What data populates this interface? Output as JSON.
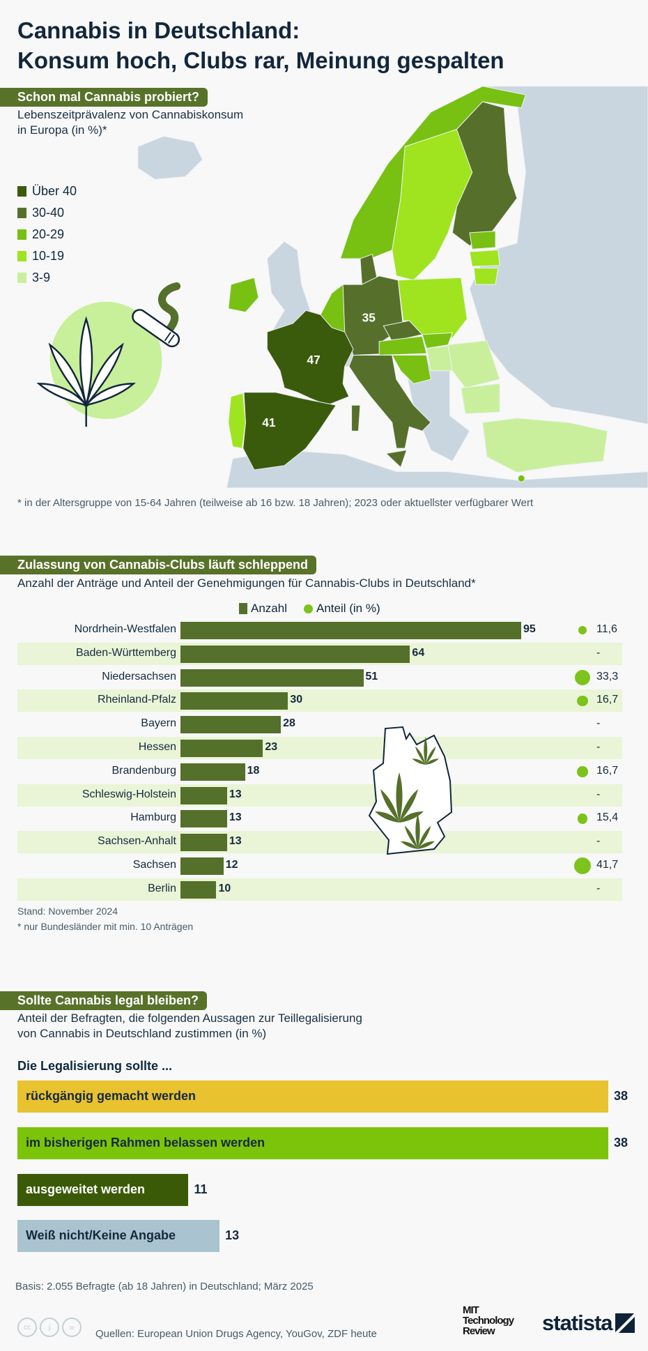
{
  "title": {
    "line1": "Cannabis in Deutschland:",
    "line2": "Konsum hoch, Clubs rar, Meinung gespalten"
  },
  "map_section": {
    "heading": "Schon mal Cannabis probiert?",
    "subtitle_line1": "Lebenszeitprävalenz von Cannabiskonsum",
    "subtitle_line2": "in Europa (in %)*",
    "legend": [
      {
        "label": "Über 40",
        "color": "#3b5b0c"
      },
      {
        "label": "30-40",
        "color": "#56702b"
      },
      {
        "label": "20-29",
        "color": "#78c012"
      },
      {
        "label": "10-19",
        "color": "#9fe41f"
      },
      {
        "label": "3-9",
        "color": "#c9ef9c"
      }
    ],
    "no_data_color": "#c9d6df",
    "map_labels": [
      {
        "country": "Deutschland",
        "value": "35"
      },
      {
        "country": "Frankreich",
        "value": "47"
      },
      {
        "country": "Spanien",
        "value": "41"
      }
    ],
    "footnote": "* in der Altersgruppe von 15-64 Jahren (teilweise ab 16 bzw. 18 Jahren); 2023 oder aktuellster verfügbarer Wert"
  },
  "clubs_section": {
    "heading": "Zulassung von Cannabis-Clubs läuft schleppend",
    "subtitle": "Anzahl der Anträge und Anteil der Genehmigungen für Cannabis-Clubs in Deutschland*",
    "legend_anzahl": "Anzahl",
    "legend_anteil": "Anteil (in %)",
    "note1": "Stand: November 2024",
    "note2": "* nur Bundesländer mit min. 10 Anträgen"
  },
  "survey_section": {
    "heading": "Sollte Cannabis legal bleiben?",
    "subtitle_line1": "Anteil der Befragten, die folgenden Aussagen zur Teillegalisierung",
    "subtitle_line2": "von Cannabis in Deutschland zustimmen (in %)",
    "group_label": "Die Legalisierung sollte ...",
    "basis": "Basis: 2.055 Befragte (ab 18 Jahren) in Deutschland; März 2025"
  },
  "footer": {
    "sources": "Quellen: European Union Drugs Agency, YouGov, ZDF heute",
    "logo_mit": "MIT Technology Review",
    "logo_statista": "statista"
  },
  "chart_data": [
    {
      "type": "bar",
      "orientation": "horizontal",
      "categories": [
        "Nordrhein-Westfalen",
        "Baden-Württemberg",
        "Niedersachsen",
        "Rheinland-Pfalz",
        "Bayern",
        "Hessen",
        "Brandenburg",
        "Schleswig-Holstein",
        "Hamburg",
        "Sachsen-Anhalt",
        "Sachsen",
        "Berlin"
      ],
      "series": [
        {
          "name": "Anzahl",
          "values": [
            95,
            64,
            51,
            30,
            28,
            23,
            18,
            13,
            13,
            13,
            12,
            10
          ],
          "color": "#55702a"
        },
        {
          "name": "Anteil (in %)",
          "values": [
            "11,6",
            "-",
            "33,3",
            "16,7",
            "-",
            "-",
            "16,7",
            "-",
            "15,4",
            "-",
            "41,7",
            "-"
          ],
          "color": "#7cc31b"
        }
      ]
    },
    {
      "type": "bar",
      "orientation": "horizontal",
      "categories": [
        "rückgängig gemacht werden",
        "im bisherigen Rahmen belassen werden",
        "ausgeweitet werden",
        "Weiß nicht/Keine Angabe"
      ],
      "values": [
        38,
        38,
        11,
        13
      ],
      "colors": [
        "#e8c22f",
        "#7cc40a",
        "#3a5a07",
        "#a9c4cf"
      ],
      "text_colors": [
        "#15293e",
        "#15293e",
        "#ffffff",
        "#15293e"
      ]
    }
  ]
}
